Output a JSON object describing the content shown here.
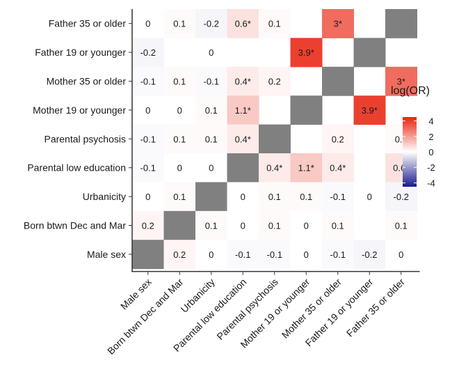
{
  "chart_data": {
    "type": "heatmap",
    "title": "",
    "xlabel": "",
    "ylabel": "",
    "x_categories": [
      "Male sex",
      "Born btwn Dec and Mar",
      "Urbanicity",
      "Parental low education",
      "Parental psychosis",
      "Mother 19 or younger",
      "Mother 35 or older",
      "Father 19 or younger",
      "Father 35 or older"
    ],
    "y_categories": [
      "Father 35 or older",
      "Father 19 or younger",
      "Mother 35 or older",
      "Mother 19 or younger",
      "Parental psychosis",
      "Parental low education",
      "Urbanicity",
      "Born btwn Dec and Mar",
      "Male sex"
    ],
    "values": [
      [
        0,
        0.1,
        -0.2,
        0.6,
        0.1,
        null,
        3,
        null,
        null
      ],
      [
        -0.2,
        null,
        0,
        null,
        null,
        3.9,
        null,
        null,
        null
      ],
      [
        -0.1,
        0.1,
        -0.1,
        0.4,
        0.2,
        null,
        null,
        null,
        3
      ],
      [
        0,
        0,
        0.1,
        1.1,
        null,
        null,
        null,
        3.9,
        null
      ],
      [
        -0.1,
        0.1,
        0.1,
        0.4,
        null,
        null,
        0.2,
        null,
        0.1
      ],
      [
        -0.1,
        0,
        0,
        null,
        0.4,
        1.1,
        0.4,
        null,
        0.6
      ],
      [
        0,
        0.1,
        null,
        0,
        0.1,
        0.1,
        -0.1,
        0,
        -0.2
      ],
      [
        0.2,
        null,
        0.1,
        0,
        0.1,
        0,
        0.1,
        null,
        0.1
      ],
      [
        null,
        0.2,
        0,
        -0.1,
        -0.1,
        0,
        -0.1,
        -0.2,
        0
      ]
    ],
    "labels": [
      [
        "0",
        "0.1",
        "-0.2",
        "0.6*",
        "0.1",
        "",
        "3*",
        "",
        ""
      ],
      [
        "-0.2",
        "",
        "0",
        "",
        "",
        "3.9*",
        "",
        "",
        ""
      ],
      [
        "-0.1",
        "0.1",
        "-0.1",
        "0.4*",
        "0.2",
        "",
        "",
        "",
        "3*"
      ],
      [
        "0",
        "0",
        "0.1",
        "1.1*",
        "",
        "",
        "",
        "3.9*",
        ""
      ],
      [
        "-0.1",
        "0.1",
        "0.1",
        "0.4*",
        "",
        "",
        "0.2",
        "",
        "0.1"
      ],
      [
        "-0.1",
        "0",
        "0",
        "",
        "0.4*",
        "1.1*",
        "0.4*",
        "",
        "0.6*"
      ],
      [
        "0",
        "0.1",
        "",
        "0",
        "0.1",
        "0.1",
        "-0.1",
        "0",
        "-0.2"
      ],
      [
        "0.2",
        "",
        "0.1",
        "0",
        "0.1",
        "0",
        "0.1",
        "",
        "0.1"
      ],
      [
        "",
        "0.2",
        "0",
        "-0.1",
        "-0.1",
        "0",
        "-0.1",
        "-0.2",
        "0"
      ]
    ],
    "diagonal_cells": [
      {
        "row": "Father 35 or older",
        "col": "Father 35 or older"
      },
      {
        "row": "Father 19 or younger",
        "col": "Father 19 or younger"
      },
      {
        "row": "Mother 35 or older",
        "col": "Mother 35 or older"
      },
      {
        "row": "Mother 19 or younger",
        "col": "Mother 19 or younger"
      },
      {
        "row": "Parental psychosis",
        "col": "Parental psychosis"
      },
      {
        "row": "Parental low education",
        "col": "Parental low education"
      },
      {
        "row": "Urbanicity",
        "col": "Urbanicity"
      },
      {
        "row": "Born btwn Dec and Mar",
        "col": "Born btwn Dec and Mar"
      },
      {
        "row": "Male sex",
        "col": "Male sex"
      }
    ],
    "legend": {
      "title": "log(OR)",
      "placement": "right",
      "range": [
        -4.5,
        4.5
      ],
      "ticks": [
        4,
        2,
        0,
        -2,
        -4
      ],
      "tick_labels": [
        "4",
        "2",
        "0",
        "-2",
        "-4"
      ]
    },
    "colors": {
      "low": "#1a1a8c",
      "mid": "#ffffff",
      "high": "#e8230f",
      "diagonal": "#808080",
      "axis": "#333333"
    },
    "grid": false
  }
}
